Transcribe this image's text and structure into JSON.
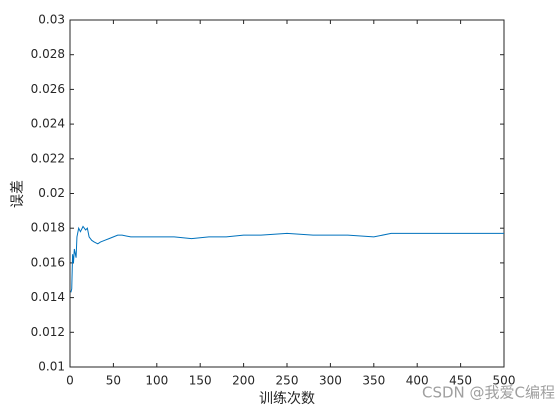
{
  "chart_data": {
    "type": "line",
    "xlabel": "训练次数",
    "ylabel": "误差",
    "x": [
      1,
      2,
      3,
      4,
      5,
      7,
      8,
      10,
      12,
      15,
      18,
      20,
      22,
      25,
      28,
      32,
      35,
      40,
      45,
      50,
      55,
      60,
      70,
      80,
      100,
      120,
      140,
      160,
      180,
      200,
      220,
      250,
      280,
      300,
      320,
      350,
      370,
      400,
      450,
      500
    ],
    "series": [
      {
        "color": "#0072bd",
        "values": [
          0.0143,
          0.0145,
          0.0165,
          0.016,
          0.0168,
          0.0163,
          0.0175,
          0.018,
          0.0178,
          0.0181,
          0.0179,
          0.018,
          0.0175,
          0.0173,
          0.0172,
          0.0171,
          0.0172,
          0.0173,
          0.0174,
          0.0175,
          0.0176,
          0.0176,
          0.0175,
          0.0175,
          0.0175,
          0.0175,
          0.0174,
          0.0175,
          0.0175,
          0.0176,
          0.0176,
          0.0177,
          0.0176,
          0.0176,
          0.0176,
          0.0175,
          0.0177,
          0.0177,
          0.0177,
          0.0177
        ]
      }
    ],
    "xlim": [
      0,
      500
    ],
    "xticks": [
      0,
      50,
      100,
      150,
      200,
      250,
      300,
      350,
      400,
      450,
      500
    ],
    "ylim": [
      0.01,
      0.03
    ],
    "yticks": [
      0.01,
      0.012,
      0.014,
      0.016,
      0.018,
      0.02,
      0.022,
      0.024,
      0.026,
      0.028,
      0.03
    ],
    "grid": false
  },
  "watermark": "CSDN @我爱C编程"
}
